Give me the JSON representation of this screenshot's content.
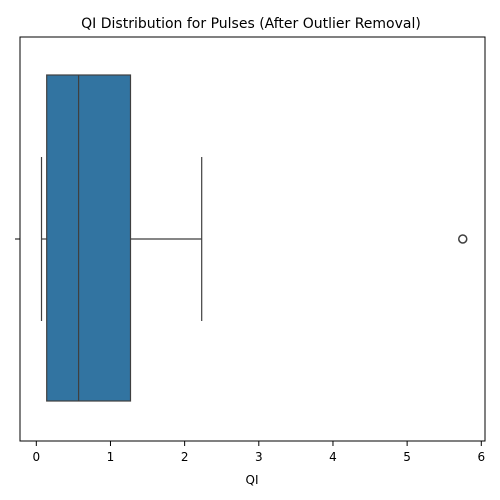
{
  "chart_data": {
    "type": "box",
    "title": "QI Distribution for Pulses (After Outlier Removal)",
    "xlabel": "QI",
    "ylabel": "",
    "orientation": "horizontal",
    "xlim": [
      -0.22,
      6.05
    ],
    "xticks": [
      0,
      1,
      2,
      3,
      4,
      5,
      6
    ],
    "box": {
      "whisker_low": 0.07,
      "q1": 0.14,
      "median": 0.57,
      "q3": 1.27,
      "whisker_high": 2.23,
      "outliers": [
        5.75
      ]
    },
    "grid": false,
    "colors": {
      "box_fill": "#3274a1",
      "line": "#3f3f3f",
      "axis": "#000000"
    }
  }
}
